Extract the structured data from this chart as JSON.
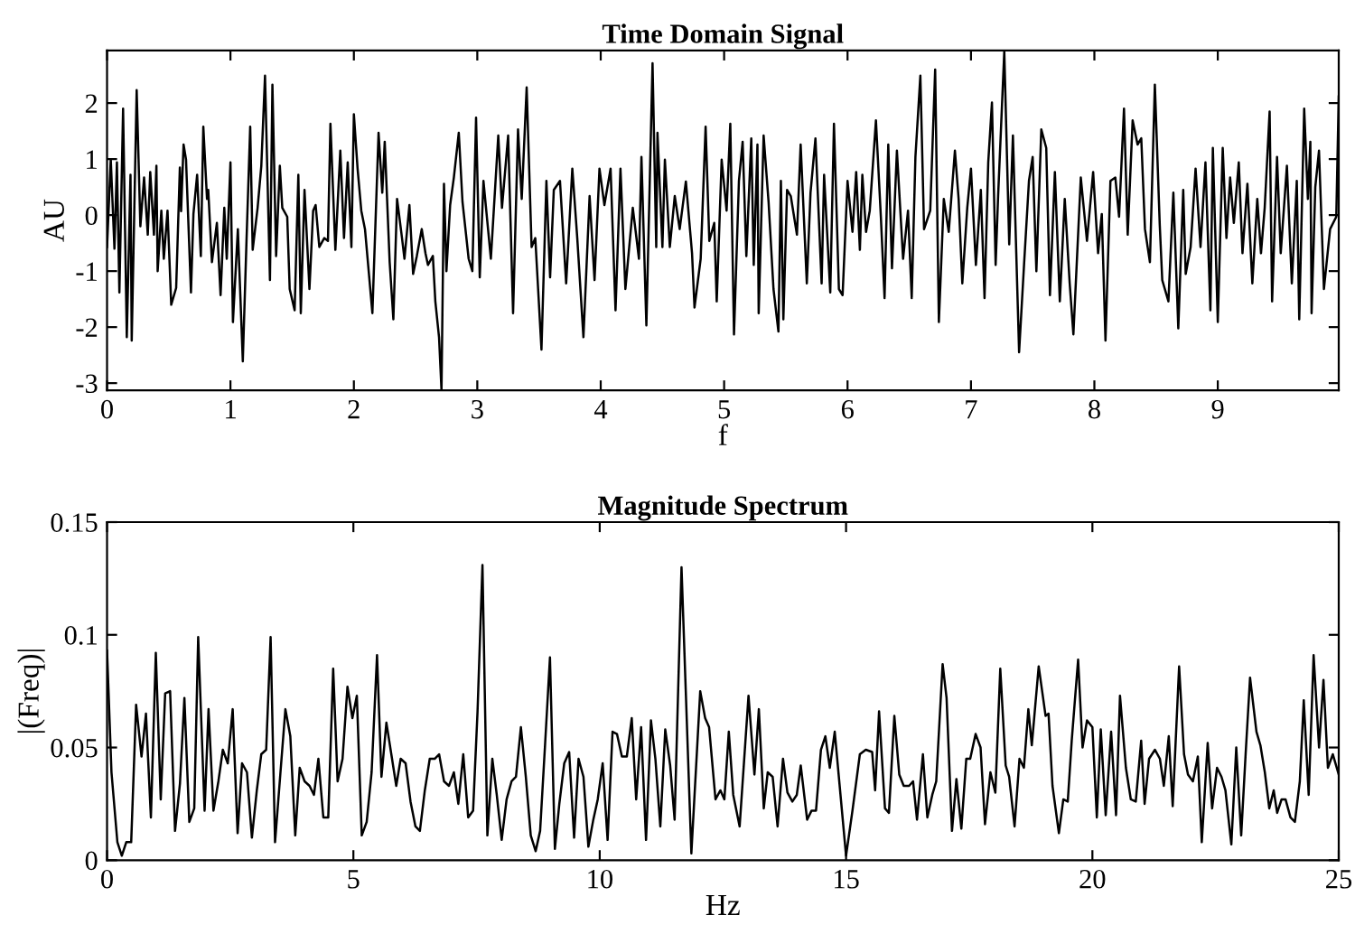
{
  "chart_data": [
    {
      "type": "line",
      "title": "Time Domain Signal",
      "xlabel": "f",
      "ylabel": "AU",
      "xlim": [
        0,
        9.98
      ],
      "ylim": [
        -3.13,
        2.94
      ],
      "xticks": [
        0,
        1,
        2,
        3,
        4,
        5,
        6,
        7,
        8,
        9
      ],
      "yticks": [
        -3,
        -2,
        -1,
        0,
        1,
        2
      ],
      "series": [
        {
          "color": "#000000",
          "x": [
            0,
            0.03,
            0.06,
            0.08,
            0.1,
            0.13,
            0.16,
            0.19,
            0.2,
            0.24,
            0.27,
            0.3,
            0.33,
            0.35,
            0.38,
            0.4,
            0.41,
            0.44,
            0.46,
            0.49,
            0.52,
            0.56,
            0.59,
            0.6,
            0.62,
            0.64,
            0.68,
            0.7,
            0.73,
            0.76,
            0.78,
            0.81,
            0.82,
            0.85,
            0.89,
            0.92,
            0.95,
            0.97,
            1.0,
            1.02,
            1.06,
            1.1,
            1.13,
            1.16,
            1.18,
            1.22,
            1.25,
            1.28,
            1.32,
            1.34,
            1.37,
            1.4,
            1.42,
            1.46,
            1.48,
            1.52,
            1.55,
            1.57,
            1.6,
            1.64,
            1.67,
            1.69,
            1.72,
            1.76,
            1.79,
            1.81,
            1.85,
            1.89,
            1.92,
            1.95,
            1.98,
            2.0,
            2.03,
            2.06,
            2.09,
            2.15,
            2.2,
            2.23,
            2.25,
            2.29,
            2.32,
            2.35,
            2.39,
            2.41,
            2.45,
            2.48,
            2.51,
            2.55,
            2.58,
            2.6,
            2.64,
            2.66,
            2.69,
            2.71,
            2.73,
            2.75,
            2.78,
            2.81,
            2.85,
            2.88,
            2.93,
            2.96,
            2.99,
            3.02,
            3.05,
            3.11,
            3.17,
            3.2,
            3.25,
            3.29,
            3.33,
            3.36,
            3.4,
            3.44,
            3.47,
            3.52,
            3.56,
            3.59,
            3.62,
            3.67,
            3.72,
            3.74,
            3.77,
            3.81,
            3.86,
            3.91,
            3.95,
            3.99,
            4.03,
            4.08,
            4.12,
            4.16,
            4.2,
            4.26,
            4.31,
            4.33,
            4.37,
            4.42,
            4.45,
            4.46,
            4.5,
            4.52,
            4.56,
            4.6,
            4.64,
            4.69,
            4.74,
            4.76,
            4.81,
            4.85,
            4.88,
            4.92,
            4.94,
            4.98,
            5.02,
            5.05,
            5.08,
            5.12,
            5.15,
            5.18,
            5.22,
            5.24,
            5.27,
            5.28,
            5.32,
            5.36,
            5.4,
            5.44,
            5.46,
            5.48,
            5.51,
            5.54,
            5.59,
            5.62,
            5.67,
            5.7,
            5.74,
            5.79,
            5.81,
            5.86,
            5.89,
            5.93,
            5.96,
            6.0,
            6.04,
            6.07,
            6.1,
            6.12,
            6.15,
            6.18,
            6.23,
            6.27,
            6.3,
            6.33,
            6.36,
            6.4,
            6.45,
            6.49,
            6.52,
            6.55,
            6.59,
            6.62,
            6.67,
            6.71,
            6.74,
            6.78,
            6.82,
            6.87,
            6.9,
            6.93,
            6.97,
            7.0,
            7.04,
            7.08,
            7.11,
            7.14,
            7.17,
            7.2,
            7.22,
            7.27,
            7.31,
            7.34,
            7.39,
            7.43,
            7.47,
            7.5,
            7.53,
            7.57,
            7.61,
            7.64,
            7.68,
            7.72,
            7.76,
            7.8,
            7.83,
            7.89,
            7.94,
            7.99,
            8.03,
            8.06,
            8.09,
            8.13,
            8.17,
            8.2,
            8.24,
            8.27,
            8.31,
            8.35,
            8.38,
            8.41,
            8.45,
            8.49,
            8.53,
            8.55,
            8.6,
            8.64,
            8.68,
            8.72,
            8.74,
            8.78,
            8.82,
            8.86,
            8.9,
            8.94,
            8.96,
            9.0,
            9.04,
            9.07,
            9.1,
            9.13,
            9.17,
            9.2,
            9.24,
            9.28,
            9.32,
            9.35,
            9.38,
            9.42,
            9.44,
            9.48,
            9.51,
            9.56,
            9.6,
            9.64,
            9.66,
            9.7,
            9.73,
            9.75,
            9.76,
            9.79,
            9.82,
            9.86,
            9.91,
            9.96,
            9.98
          ],
          "values": [
            -0.57,
            1.0,
            -0.6,
            0.94,
            -1.38,
            1.9,
            -2.18,
            0.72,
            -2.24,
            2.23,
            -0.2,
            0.67,
            -0.35,
            0.77,
            -0.35,
            0.88,
            -1.0,
            0.08,
            -0.78,
            0.08,
            -1.6,
            -1.3,
            0.85,
            0.07,
            1.26,
            0.99,
            -1.38,
            0.02,
            0.72,
            -0.73,
            1.58,
            0.29,
            0.45,
            -0.84,
            -0.14,
            -1.43,
            0.13,
            -0.78,
            0.94,
            -1.91,
            -0.25,
            -2.61,
            -0.46,
            1.58,
            -0.62,
            0.13,
            0.88,
            2.49,
            -1.16,
            2.33,
            -0.73,
            0.88,
            0.13,
            -0.03,
            -1.32,
            -1.7,
            0.72,
            -1.75,
            0.45,
            -1.32,
            0.08,
            0.18,
            -0.57,
            -0.41,
            -0.46,
            1.63,
            -0.62,
            1.15,
            -0.41,
            0.94,
            -0.57,
            1.8,
            0.83,
            0.08,
            -0.25,
            -1.75,
            1.47,
            0.4,
            1.31,
            -0.84,
            -1.86,
            0.29,
            -0.41,
            -0.78,
            0.18,
            -1.05,
            -0.73,
            -0.25,
            -0.68,
            -0.89,
            -0.73,
            -1.54,
            -2.18,
            -3.13,
            0.56,
            -1.0,
            0.18,
            0.67,
            1.47,
            0.24,
            -0.78,
            -1.0,
            1.74,
            -1.11,
            0.61,
            -0.78,
            1.42,
            0.13,
            1.42,
            -1.75,
            1.53,
            0.29,
            2.28,
            -0.57,
            -0.41,
            -2.4,
            0.61,
            -1.11,
            0.45,
            0.61,
            -1.22,
            -0.41,
            0.83,
            -0.41,
            -2.18,
            0.34,
            -1.16,
            0.83,
            0.18,
            0.83,
            -1.7,
            0.83,
            -1.32,
            0.13,
            -0.78,
            1.04,
            -1.97,
            2.71,
            -0.57,
            1.47,
            -0.57,
            0.99,
            -0.57,
            0.34,
            -0.25,
            0.6,
            -0.68,
            -1.65,
            -0.78,
            1.58,
            -0.46,
            -0.14,
            -1.54,
            0.99,
            0.08,
            1.63,
            -2.13,
            0.61,
            1.31,
            -0.73,
            1.37,
            -0.89,
            1.26,
            -1.75,
            1.42,
            0.24,
            -1.32,
            -2.08,
            0.61,
            -1.86,
            0.45,
            0.34,
            -0.35,
            1.26,
            -1.22,
            0.4,
            1.37,
            -1.22,
            0.72,
            -1.38,
            1.63,
            -1.32,
            -1.43,
            0.61,
            -0.3,
            0.77,
            -0.62,
            0.72,
            -0.3,
            0.08,
            1.69,
            -0.03,
            -1.48,
            1.26,
            -0.95,
            1.15,
            -0.78,
            0.08,
            -1.48,
            1.04,
            2.49,
            -0.25,
            0.08,
            2.6,
            -1.91,
            0.29,
            -0.3,
            1.15,
            0.29,
            -1.22,
            0.13,
            0.83,
            -0.89,
            0.45,
            -1.48,
            0.94,
            2.01,
            -0.89,
            0.34,
            2.92,
            -0.52,
            1.42,
            -2.45,
            -0.89,
            0.61,
            1.04,
            -1.0,
            1.53,
            1.2,
            -1.43,
            0.77,
            -1.54,
            0.29,
            -1.22,
            -2.13,
            0.67,
            -0.46,
            0.77,
            -0.68,
            0.02,
            -2.24,
            0.61,
            0.67,
            -0.03,
            1.9,
            -0.35,
            1.69,
            1.26,
            1.37,
            -0.25,
            -0.84,
            2.33,
            -0.19,
            -1.16,
            -1.54,
            0.4,
            -2.02,
            0.45,
            -1.05,
            -0.57,
            0.83,
            -0.57,
            0.94,
            -1.7,
            1.2,
            -1.91,
            1.2,
            -0.41,
            0.67,
            -0.14,
            0.94,
            -0.68,
            0.56,
            -1.22,
            0.29,
            -0.68,
            0.13,
            1.85,
            -1.54,
            1.04,
            -0.68,
            0.88,
            -1.22,
            0.61,
            -1.86,
            1.9,
            0.29,
            1.31,
            -1.75,
            0.5,
            1.15,
            -1.32,
            -0.25,
            -0.03,
            2.12
          ]
        }
      ]
    },
    {
      "type": "line",
      "title": "Magnitude Spectrum",
      "xlabel": "Hz",
      "ylabel": "|(Freq)|",
      "xlim": [
        0,
        25
      ],
      "ylim": [
        0,
        0.15
      ],
      "xticks": [
        0,
        5,
        10,
        15,
        20,
        25
      ],
      "yticks": [
        0,
        0.05,
        0.1,
        0.15
      ],
      "series": [
        {
          "color": "#000000",
          "x": [
            0,
            0.09,
            0.21,
            0.3,
            0.39,
            0.49,
            0.59,
            0.7,
            0.79,
            0.89,
            0.99,
            1.09,
            1.18,
            1.28,
            1.38,
            1.48,
            1.57,
            1.67,
            1.77,
            1.85,
            1.98,
            2.06,
            2.16,
            2.26,
            2.35,
            2.45,
            2.55,
            2.65,
            2.74,
            2.84,
            2.94,
            3.04,
            3.13,
            3.23,
            3.32,
            3.41,
            3.52,
            3.62,
            3.72,
            3.82,
            3.91,
            4.01,
            4.11,
            4.2,
            4.29,
            4.39,
            4.49,
            4.59,
            4.68,
            4.78,
            4.88,
            4.98,
            5.07,
            5.17,
            5.27,
            5.37,
            5.48,
            5.57,
            5.67,
            5.77,
            5.87,
            5.96,
            6.06,
            6.16,
            6.26,
            6.35,
            6.45,
            6.55,
            6.65,
            6.74,
            6.84,
            6.94,
            7.04,
            7.13,
            7.23,
            7.33,
            7.43,
            7.52,
            7.62,
            7.72,
            7.82,
            7.91,
            8.01,
            8.11,
            8.21,
            8.3,
            8.4,
            8.5,
            8.6,
            8.7,
            8.79,
            8.89,
            8.99,
            9.09,
            9.18,
            9.28,
            9.38,
            9.48,
            9.57,
            9.67,
            9.77,
            9.87,
            9.96,
            10.06,
            10.16,
            10.26,
            10.35,
            10.45,
            10.55,
            10.65,
            10.74,
            10.84,
            10.94,
            11.04,
            11.13,
            11.23,
            11.33,
            11.43,
            11.52,
            11.66,
            11.86,
            12.04,
            12.14,
            12.22,
            12.35,
            12.45,
            12.53,
            12.62,
            12.71,
            12.84,
            13.02,
            13.14,
            13.23,
            13.33,
            13.41,
            13.51,
            13.61,
            13.72,
            13.81,
            13.91,
            14.0,
            14.08,
            14.21,
            14.3,
            14.39,
            14.49,
            14.58,
            14.67,
            14.77,
            15.0,
            15.13,
            15.28,
            15.4,
            15.53,
            15.59,
            15.67,
            15.79,
            15.87,
            15.98,
            16.08,
            16.17,
            16.28,
            16.36,
            16.44,
            16.56,
            16.65,
            16.75,
            16.83,
            16.96,
            17.04,
            17.15,
            17.24,
            17.34,
            17.44,
            17.52,
            17.63,
            17.73,
            17.82,
            17.93,
            18.03,
            18.13,
            18.24,
            18.31,
            18.42,
            18.52,
            18.61,
            18.7,
            18.77,
            18.91,
            19.05,
            19.11,
            19.19,
            19.32,
            19.41,
            19.5,
            19.58,
            19.71,
            19.8,
            19.89,
            20.0,
            20.09,
            20.17,
            20.27,
            20.38,
            20.48,
            20.56,
            20.68,
            20.78,
            20.88,
            20.99,
            21.06,
            21.15,
            21.27,
            21.37,
            21.45,
            21.55,
            21.63,
            21.76,
            21.86,
            21.94,
            22.04,
            22.14,
            22.22,
            22.34,
            22.43,
            22.53,
            22.62,
            22.7,
            22.82,
            22.92,
            23.02,
            23.11,
            23.2,
            23.33,
            23.41,
            23.5,
            23.59,
            23.68,
            23.75,
            23.84,
            23.92,
            24.02,
            24.11,
            24.21,
            24.29,
            24.39,
            24.49,
            24.6,
            24.69,
            24.78,
            24.88,
            25.0
          ],
          "values": [
            0.093,
            0.039,
            0.008,
            0.002,
            0.008,
            0.008,
            0.069,
            0.046,
            0.065,
            0.019,
            0.092,
            0.027,
            0.074,
            0.075,
            0.013,
            0.034,
            0.072,
            0.017,
            0.023,
            0.099,
            0.022,
            0.067,
            0.022,
            0.035,
            0.049,
            0.043,
            0.067,
            0.012,
            0.043,
            0.039,
            0.01,
            0.031,
            0.047,
            0.049,
            0.099,
            0.008,
            0.039,
            0.067,
            0.055,
            0.011,
            0.041,
            0.035,
            0.033,
            0.029,
            0.045,
            0.019,
            0.019,
            0.085,
            0.035,
            0.045,
            0.077,
            0.063,
            0.073,
            0.011,
            0.017,
            0.039,
            0.091,
            0.037,
            0.061,
            0.047,
            0.033,
            0.045,
            0.043,
            0.026,
            0.015,
            0.013,
            0.031,
            0.045,
            0.045,
            0.047,
            0.035,
            0.033,
            0.039,
            0.025,
            0.047,
            0.019,
            0.022,
            0.066,
            0.131,
            0.011,
            0.045,
            0.029,
            0.009,
            0.027,
            0.035,
            0.037,
            0.059,
            0.037,
            0.011,
            0.004,
            0.013,
            0.051,
            0.09,
            0.005,
            0.025,
            0.043,
            0.048,
            0.01,
            0.045,
            0.037,
            0.006,
            0.018,
            0.027,
            0.043,
            0.009,
            0.057,
            0.056,
            0.046,
            0.046,
            0.063,
            0.027,
            0.059,
            0.009,
            0.062,
            0.045,
            0.015,
            0.058,
            0.042,
            0.018,
            0.13,
            0.003,
            0.075,
            0.063,
            0.059,
            0.027,
            0.031,
            0.027,
            0.057,
            0.029,
            0.015,
            0.073,
            0.038,
            0.067,
            0.023,
            0.039,
            0.037,
            0.015,
            0.045,
            0.03,
            0.026,
            0.029,
            0.042,
            0.018,
            0.022,
            0.022,
            0.049,
            0.055,
            0.041,
            0.057,
            0.002,
            0.022,
            0.047,
            0.049,
            0.048,
            0.031,
            0.066,
            0.023,
            0.021,
            0.064,
            0.038,
            0.033,
            0.033,
            0.035,
            0.018,
            0.047,
            0.019,
            0.029,
            0.035,
            0.087,
            0.072,
            0.013,
            0.036,
            0.014,
            0.045,
            0.045,
            0.056,
            0.05,
            0.016,
            0.039,
            0.03,
            0.085,
            0.042,
            0.037,
            0.015,
            0.045,
            0.041,
            0.067,
            0.051,
            0.086,
            0.064,
            0.065,
            0.033,
            0.012,
            0.027,
            0.026,
            0.053,
            0.089,
            0.05,
            0.062,
            0.059,
            0.019,
            0.058,
            0.02,
            0.057,
            0.02,
            0.073,
            0.041,
            0.027,
            0.026,
            0.053,
            0.025,
            0.045,
            0.049,
            0.045,
            0.033,
            0.055,
            0.024,
            0.086,
            0.047,
            0.038,
            0.035,
            0.046,
            0.008,
            0.052,
            0.023,
            0.041,
            0.037,
            0.031,
            0.007,
            0.05,
            0.011,
            0.047,
            0.081,
            0.057,
            0.051,
            0.039,
            0.023,
            0.031,
            0.021,
            0.027,
            0.027,
            0.019,
            0.017,
            0.035,
            0.071,
            0.029,
            0.091,
            0.05,
            0.08,
            0.041,
            0.047,
            0.038
          ]
        }
      ]
    }
  ]
}
